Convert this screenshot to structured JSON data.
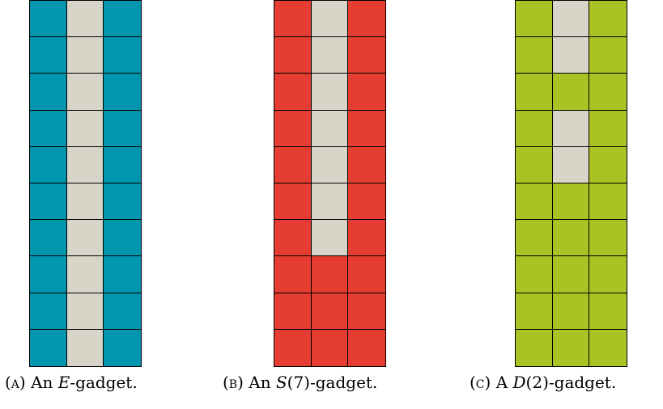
{
  "colors": {
    "empty": "#d7d4c8",
    "border": "#000000"
  },
  "gadgets": [
    {
      "key": "e",
      "fill_color": "#0096ad",
      "rows": [
        [
          1,
          0,
          1
        ],
        [
          1,
          0,
          1
        ],
        [
          1,
          0,
          1
        ],
        [
          1,
          0,
          1
        ],
        [
          1,
          0,
          1
        ],
        [
          1,
          0,
          1
        ],
        [
          1,
          0,
          1
        ],
        [
          1,
          0,
          1
        ],
        [
          1,
          0,
          1
        ],
        [
          1,
          0,
          1
        ]
      ],
      "caption": {
        "tag": "(a)",
        "pre": "An ",
        "math": "E",
        "post": "-gadget."
      }
    },
    {
      "key": "s7",
      "fill_color": "#e53d31",
      "rows": [
        [
          1,
          0,
          1
        ],
        [
          1,
          0,
          1
        ],
        [
          1,
          0,
          1
        ],
        [
          1,
          0,
          1
        ],
        [
          1,
          0,
          1
        ],
        [
          1,
          0,
          1
        ],
        [
          1,
          0,
          1
        ],
        [
          1,
          1,
          1
        ],
        [
          1,
          1,
          1
        ],
        [
          1,
          1,
          1
        ]
      ],
      "caption": {
        "tag": "(b)",
        "pre": "An ",
        "math": "S",
        "post": "(7)-gadget."
      }
    },
    {
      "key": "d2",
      "fill_color": "#abc225",
      "rows": [
        [
          1,
          0,
          1
        ],
        [
          1,
          0,
          1
        ],
        [
          1,
          1,
          1
        ],
        [
          1,
          0,
          1
        ],
        [
          1,
          0,
          1
        ],
        [
          1,
          1,
          1
        ],
        [
          1,
          1,
          1
        ],
        [
          1,
          1,
          1
        ],
        [
          1,
          1,
          1
        ],
        [
          1,
          1,
          1
        ]
      ],
      "caption": {
        "tag": "(c)",
        "pre": "A ",
        "math": "D",
        "post": "(2)-gadget."
      }
    }
  ]
}
